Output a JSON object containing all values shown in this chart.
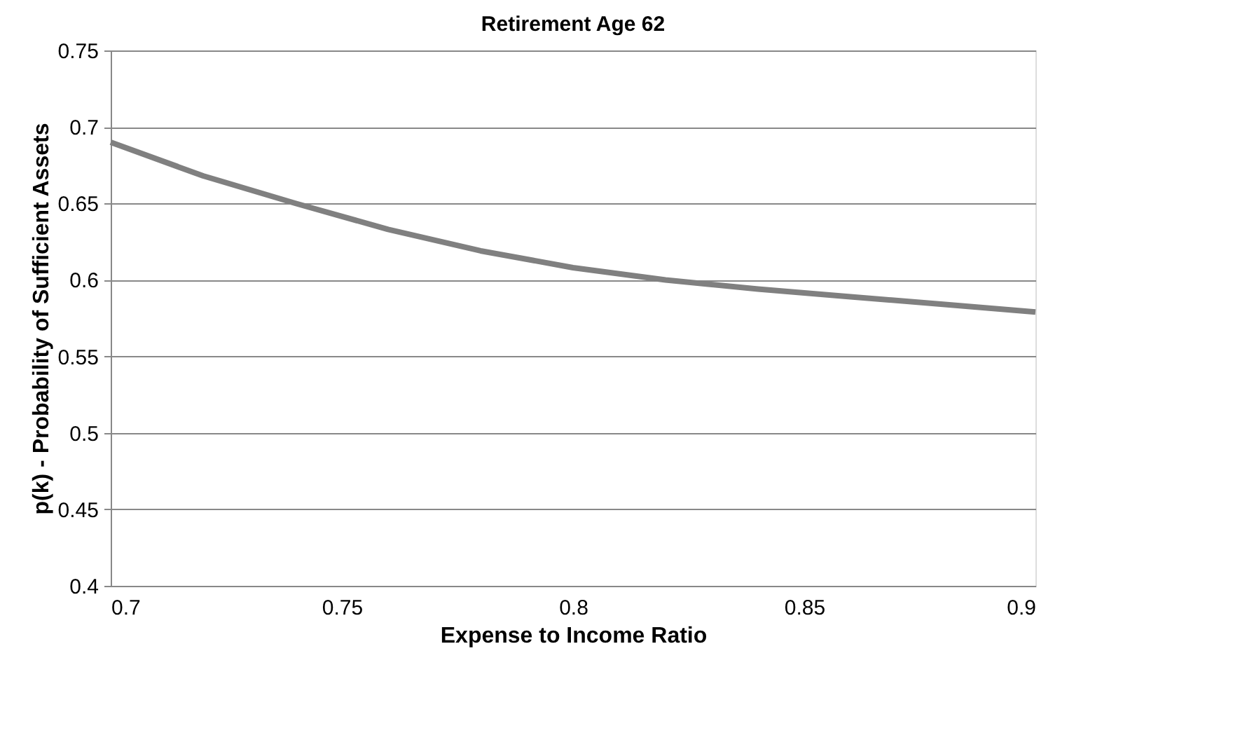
{
  "chart_data": {
    "type": "line",
    "title": "Retirement Age 62",
    "xlabel": "Expense to Income Ratio",
    "ylabel": "p(k) - Probability of Sufficient Assets",
    "x": [
      0.7,
      0.72,
      0.74,
      0.76,
      0.78,
      0.8,
      0.82,
      0.84,
      0.86,
      0.88,
      0.9
    ],
    "series": [
      {
        "color": "#808080",
        "values": [
          0.69,
          0.668,
          0.65,
          0.633,
          0.619,
          0.608,
          0.6,
          0.594,
          0.589,
          0.584,
          0.579
        ]
      }
    ],
    "xlim": [
      0.7,
      0.9
    ],
    "xticks": [
      0.7,
      0.75,
      0.8,
      0.85,
      0.9
    ],
    "ylim": [
      0.4,
      0.75
    ],
    "yticks": [
      0.4,
      0.45,
      0.5,
      0.55,
      0.6,
      0.65,
      0.7,
      0.75
    ],
    "grid": "y",
    "legend": false,
    "marker": "none",
    "line_style": "solid"
  }
}
